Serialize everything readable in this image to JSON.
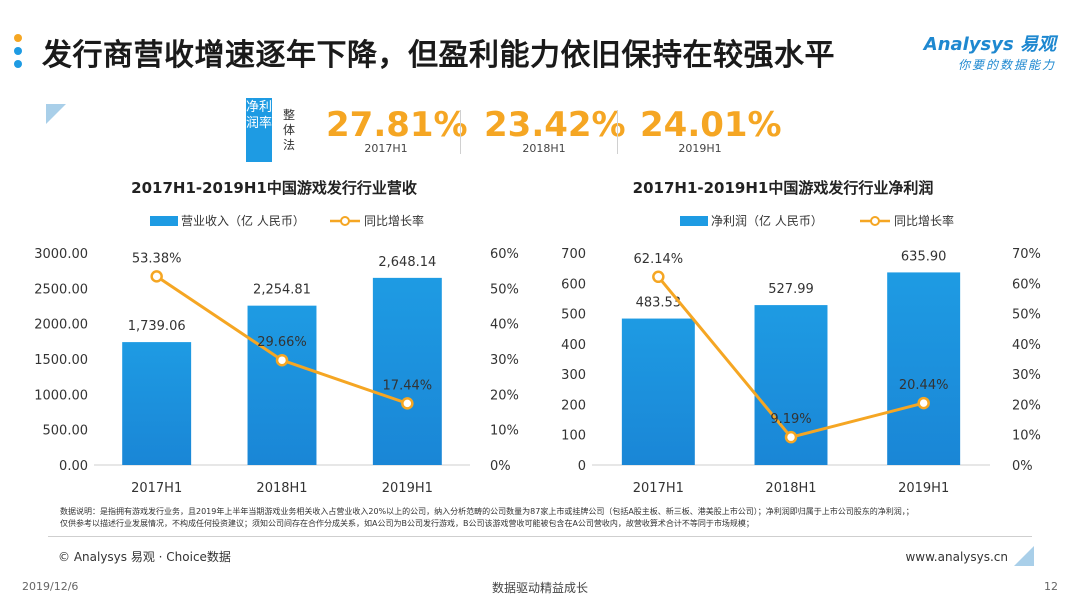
{
  "header": {
    "title": "发行商营收增速逐年下降，但盈利能力依旧保持在较强水平",
    "dot_colors": [
      "#f5a623",
      "#1e9be3",
      "#1e9be3"
    ],
    "logo_main": "Analysys 易观",
    "logo_sub": "你要的数据能力"
  },
  "kpi_panel": {
    "metric_label": "净利润率",
    "scope_label": "整体法",
    "items": [
      {
        "value": "27.81%",
        "label": "2017H1"
      },
      {
        "value": "23.42%",
        "label": "2018H1"
      },
      {
        "value": "24.01%",
        "label": "2019H1"
      }
    ]
  },
  "colors": {
    "bar": "#1e9be3",
    "bar_dark": "#1a86d6",
    "line": "#f5a623",
    "accent_blue": "#1e9be3"
  },
  "chart_data": [
    {
      "type": "bar",
      "title": "2017H1-2019H1中国游戏发行行业营收",
      "categories": [
        "2017H1",
        "2018H1",
        "2019H1"
      ],
      "series": [
        {
          "name": "营业收入（亿 人民币）",
          "type": "bar",
          "axis": "left",
          "values": [
            1739.06,
            2254.81,
            2648.14
          ],
          "labels": [
            "1,739.06",
            "2,254.81",
            "2,648.14"
          ]
        },
        {
          "name": "同比增长率",
          "type": "line",
          "axis": "right",
          "values": [
            53.38,
            29.66,
            17.44
          ],
          "labels": [
            "53.38%",
            "29.66%",
            "17.44%"
          ]
        }
      ],
      "y_left": {
        "min": 0,
        "max": 3000,
        "ticks": [
          "0.00",
          "500.00",
          "1000.00",
          "1500.00",
          "2000.00",
          "2500.00",
          "3000.00"
        ]
      },
      "y_right": {
        "min": 0,
        "max": 60,
        "ticks": [
          "0%",
          "10%",
          "20%",
          "30%",
          "40%",
          "50%",
          "60%"
        ]
      },
      "grid": false,
      "legend": "top-center"
    },
    {
      "type": "bar",
      "title": "2017H1-2019H1中国游戏发行行业净利润",
      "categories": [
        "2017H1",
        "2018H1",
        "2019H1"
      ],
      "series": [
        {
          "name": "净利润（亿 人民币）",
          "type": "bar",
          "axis": "left",
          "values": [
            483.53,
            527.99,
            635.9
          ],
          "labels": [
            "483.53",
            "527.99",
            "635.90"
          ]
        },
        {
          "name": "同比增长率",
          "type": "line",
          "axis": "right",
          "values": [
            62.14,
            9.19,
            20.44
          ],
          "labels": [
            "62.14%",
            "9.19%",
            "20.44%"
          ]
        }
      ],
      "y_left": {
        "min": 0,
        "max": 700,
        "ticks": [
          "0",
          "100",
          "200",
          "300",
          "400",
          "500",
          "600",
          "700"
        ]
      },
      "y_right": {
        "min": 0,
        "max": 70,
        "ticks": [
          "0%",
          "10%",
          "20%",
          "30%",
          "40%",
          "50%",
          "60%",
          "70%"
        ]
      },
      "grid": false,
      "legend": "top-center"
    }
  ],
  "footer": {
    "note_line1": "数据说明：是指拥有游戏发行业务，且2019年上半年当期游戏业务相关收入占营业收入20%以上的公司，纳入分析范畴的公司数量为87家上市或挂牌公司（包括A股主板、新三板、港美股上市公司）；净利润即归属于上市公司股东的净利润，；",
    "note_line2": "仅供参考以描述行业发展情况，不构成任何投资建议；须知公司间存在合作分成关系，如A公司为B公司发行游戏，B公司该游戏营收可能被包含在A公司营收内，故营收算术合计不等同于市场规模；",
    "source": "© Analysys 易观 · Choice数据",
    "site": "www.analysys.cn",
    "date": "2019/12/6",
    "slogan": "数据驱动精益成长",
    "page_number": "12"
  }
}
